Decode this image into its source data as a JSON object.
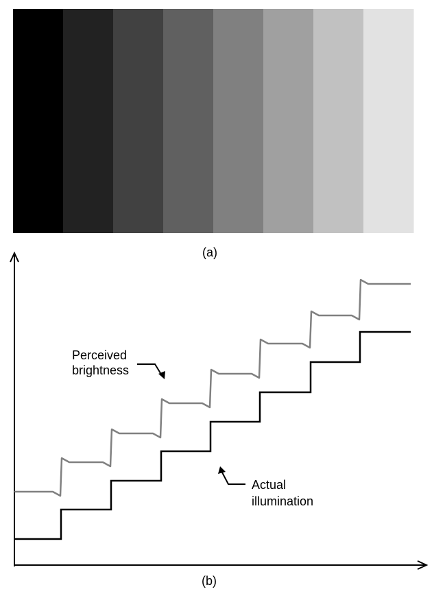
{
  "panel_a": {
    "caption": "(a)",
    "band_colors": [
      "#000000",
      "#222222",
      "#414141",
      "#606060",
      "#808080",
      "#a0a0a0",
      "#c1c1c1",
      "#e2e2e2"
    ]
  },
  "panel_b": {
    "caption": "(b)",
    "perceived": {
      "line1": "Perceived",
      "line2": "brightness",
      "color": "#808080"
    },
    "actual": {
      "line1": "Actual",
      "line2": "illumination",
      "color": "#000000"
    }
  }
}
